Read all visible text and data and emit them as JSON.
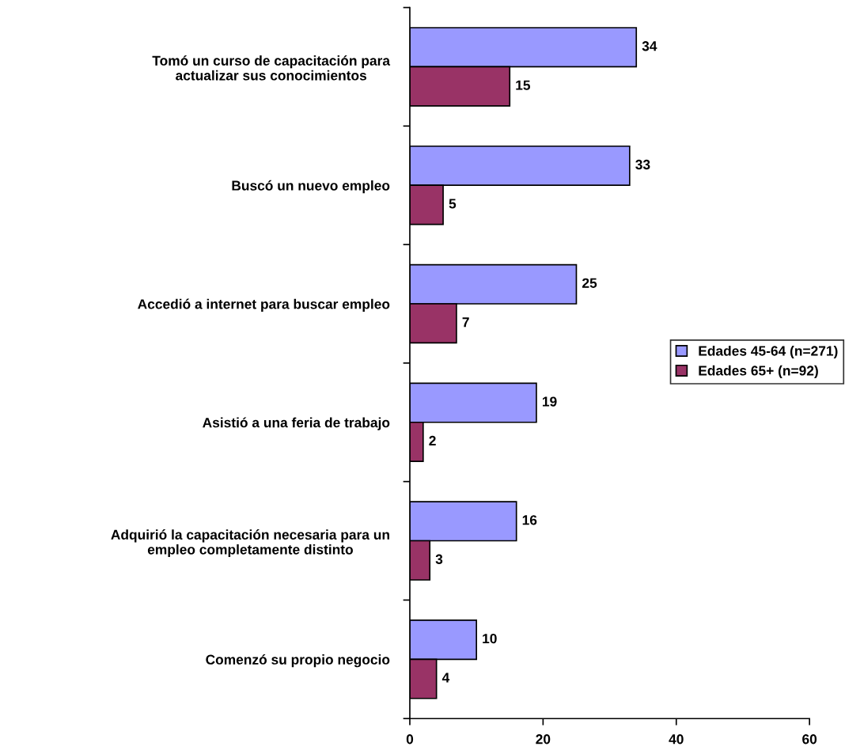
{
  "chart_data": {
    "type": "bar",
    "orientation": "horizontal",
    "categories": [
      "Tomó un curso de capacitación para\nactualizar sus conocimientos",
      "Buscó un nuevo empleo",
      "Accedió a internet para buscar empleo",
      "Asistió a una feria de trabajo",
      "Adquirió la capacitación necesaria para un\nempleo completamente distinto",
      "Comenzó su propio negocio"
    ],
    "series": [
      {
        "name": "Edades 45-64 (n=271)",
        "color": "#9999ff",
        "values": [
          34,
          33,
          25,
          19,
          16,
          10
        ]
      },
      {
        "name": "Edades 65+ (n=92)",
        "color": "#993366",
        "values": [
          15,
          5,
          7,
          2,
          3,
          4
        ]
      }
    ],
    "xlim": [
      0,
      60
    ],
    "xticks": [
      0,
      20,
      40,
      60
    ],
    "data_labels": true,
    "grid": false,
    "legend": "right"
  }
}
